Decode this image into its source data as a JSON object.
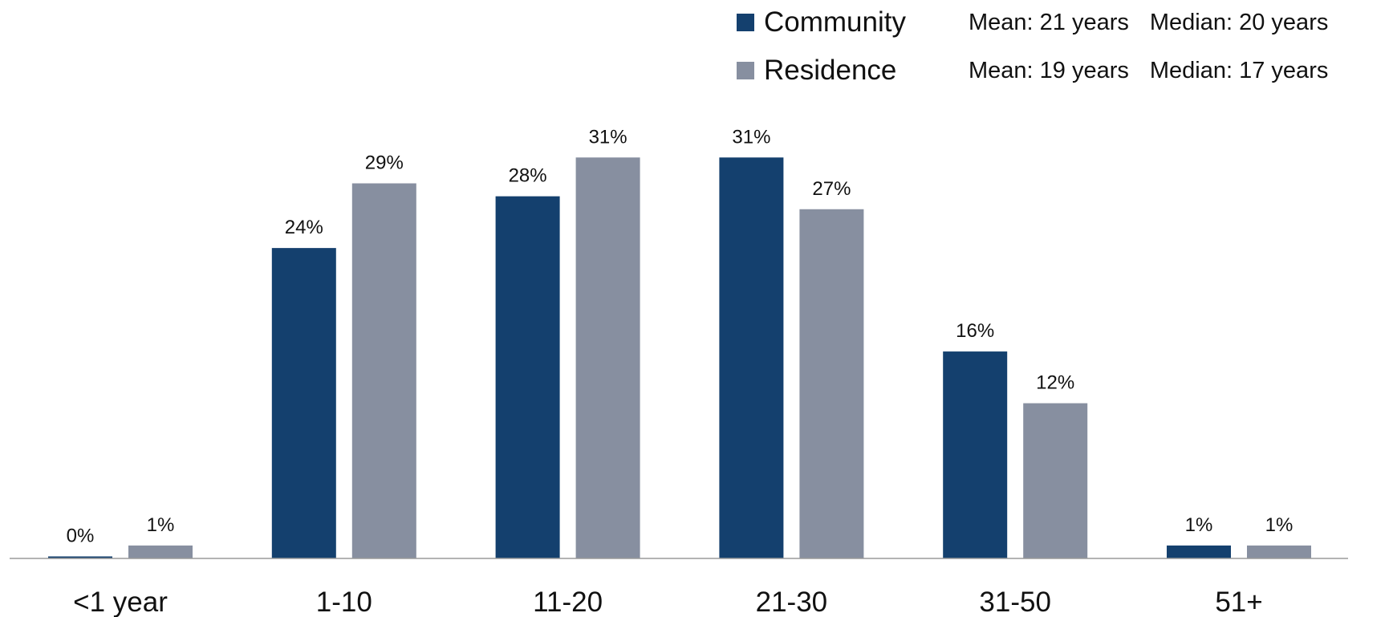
{
  "chart_data": {
    "type": "bar",
    "categories": [
      "<1 year",
      "1-10",
      "11-20",
      "21-30",
      "31-50",
      "51+"
    ],
    "series": [
      {
        "name": "Community",
        "color": "#14406e",
        "values": [
          0,
          24,
          28,
          31,
          16,
          1
        ],
        "labels": [
          "0%",
          "24%",
          "28%",
          "31%",
          "16%",
          "1%"
        ],
        "mean": "Mean: 21 years",
        "median": "Median: 20 years"
      },
      {
        "name": "Residence",
        "color": "#878fa0",
        "values": [
          1,
          29,
          31,
          27,
          12,
          1
        ],
        "labels": [
          "1%",
          "29%",
          "31%",
          "27%",
          "12%",
          "1%"
        ],
        "mean": "Mean: 19 years",
        "median": "Median: 17 years"
      }
    ],
    "unit": "%",
    "ylim": [
      0,
      33
    ],
    "grid": false,
    "legend": "top-right"
  }
}
